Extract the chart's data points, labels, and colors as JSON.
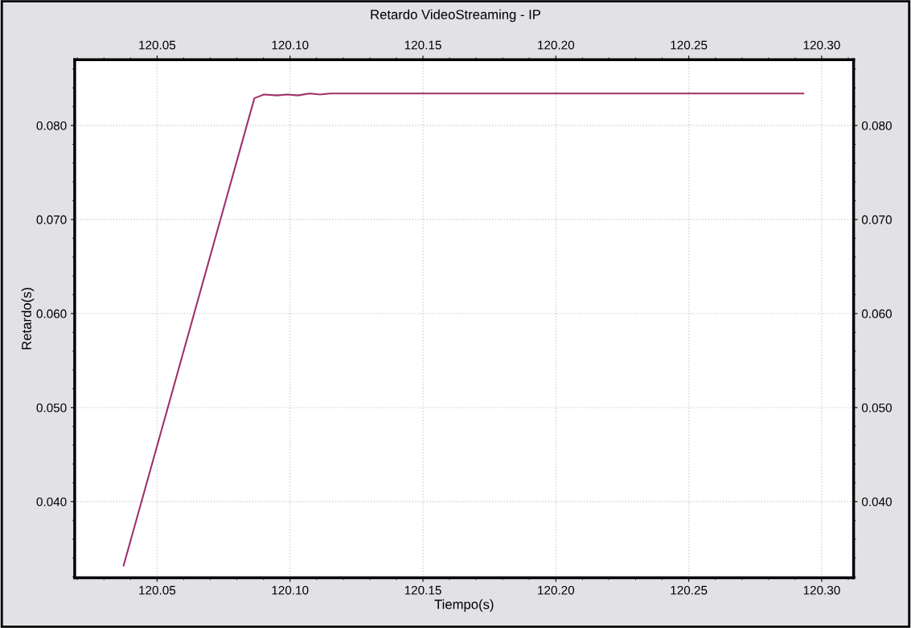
{
  "chart_data": {
    "type": "line",
    "title": "Retardo VideoStreaming - IP",
    "xlabel": "Tiempo(s)",
    "ylabel": "Retardo(s)",
    "x": [
      120.0374,
      120.0866,
      120.0902,
      120.0951,
      120.099,
      120.1029,
      120.1074,
      120.1113,
      120.1152,
      120.2931
    ],
    "series": [
      {
        "color": "#a0306a",
        "values": [
          0.0332,
          0.0829,
          0.0833,
          0.0832,
          0.0833,
          0.0832,
          0.0834,
          0.0833,
          0.0834,
          0.0834
        ]
      }
    ],
    "xlim": [
      120.019,
      120.312
    ],
    "xticks": [
      {
        "value": 120.05,
        "label": "120.05"
      },
      {
        "value": 120.1,
        "label": "120.10"
      },
      {
        "value": 120.15,
        "label": "120.15"
      },
      {
        "value": 120.2,
        "label": "120.20"
      },
      {
        "value": 120.25,
        "label": "120.25"
      },
      {
        "value": 120.3,
        "label": "120.30"
      }
    ],
    "x2lim": [
      120.019,
      120.312
    ],
    "x2ticks": [
      {
        "value": 120.05,
        "label": "120.05"
      },
      {
        "value": 120.1,
        "label": "120.10"
      },
      {
        "value": 120.15,
        "label": "120.15"
      },
      {
        "value": 120.2,
        "label": "120.20"
      },
      {
        "value": 120.25,
        "label": "120.25"
      },
      {
        "value": 120.3,
        "label": "120.30"
      }
    ],
    "ylim": [
      0.0319,
      0.087
    ],
    "yticks": [
      {
        "value": 0.04,
        "label": "0.040"
      },
      {
        "value": 0.05,
        "label": "0.050"
      },
      {
        "value": 0.06,
        "label": "0.060"
      },
      {
        "value": 0.07,
        "label": "0.070"
      },
      {
        "value": 0.08,
        "label": "0.080"
      }
    ],
    "y2lim": [
      0.0319,
      0.087
    ],
    "y2ticks": [
      {
        "value": 0.04,
        "label": "0.040"
      },
      {
        "value": 0.05,
        "label": "0.050"
      },
      {
        "value": 0.06,
        "label": "0.060"
      },
      {
        "value": 0.07,
        "label": "0.070"
      },
      {
        "value": 0.08,
        "label": "0.080"
      }
    ],
    "grid": true,
    "marker": "none",
    "line_style": "solid"
  }
}
